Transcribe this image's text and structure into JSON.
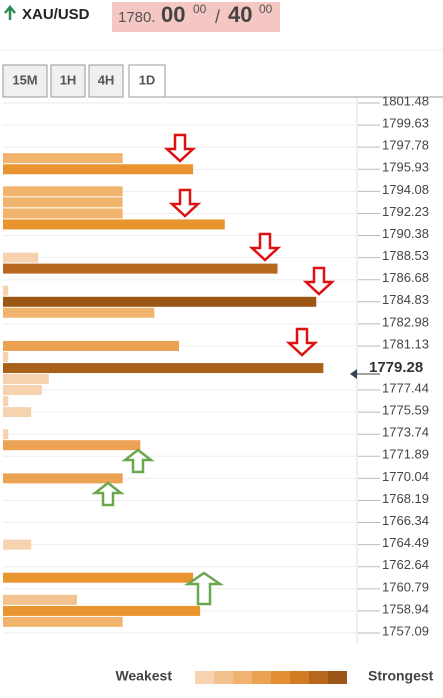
{
  "header": {
    "symbol": "XAU/USD",
    "bid_main": "1780.",
    "bid_big": "00",
    "bid_small": "00",
    "separator": "/",
    "ask_big": "40",
    "ask_small": "00"
  },
  "tabs": [
    "15M",
    "1H",
    "4H",
    "1D"
  ],
  "active_tab": 3,
  "chart_data": {
    "type": "confluence",
    "ylim": [
      1757.09,
      1801.48
    ],
    "yticks": [
      1801.48,
      1799.63,
      1797.78,
      1795.93,
      1794.08,
      1792.23,
      1790.38,
      1788.53,
      1786.68,
      1784.83,
      1782.98,
      1781.13,
      1777.44,
      1775.59,
      1773.74,
      1771.89,
      1770.04,
      1768.19,
      1766.34,
      1764.49,
      1762.64,
      1760.79,
      1758.94,
      1757.09
    ],
    "current_price": 1779.28,
    "xlim": [
      0,
      100
    ],
    "y": [
      1796.86,
      1795.93,
      1794.08,
      1793.16,
      1792.23,
      1791.31,
      1788.53,
      1787.61,
      1785.76,
      1784.83,
      1783.91,
      1781.13,
      1780.21,
      1779.28,
      1778.36,
      1777.44,
      1776.51,
      1775.59,
      1773.74,
      1772.82,
      1770.04,
      1764.49,
      1761.72,
      1759.87,
      1758.94,
      1758.02
    ],
    "values": [
      34,
      54,
      34,
      34,
      34,
      63,
      10,
      78,
      1.5,
      89,
      43,
      50,
      1.5,
      91,
      13,
      11,
      1.5,
      8,
      1.5,
      39,
      34,
      8,
      54,
      21,
      56,
      34
    ],
    "colors": [
      "#f0b46c",
      "#e8952f",
      "#f0b46c",
      "#f0b46c",
      "#f0b46c",
      "#e8952f",
      "#f6d2ae",
      "#b8691f",
      "#f6d2ae",
      "#9c5716",
      "#f0b46c",
      "#eba253",
      "#f6d2ae",
      "#a86118",
      "#f6d2ae",
      "#f6d2ae",
      "#f6d2ae",
      "#f6d2ae",
      "#f6d2ae",
      "#eba253",
      "#eba253",
      "#f6d2ae",
      "#e8952f",
      "#f3c38f",
      "#e8952f",
      "#f0b46c"
    ],
    "legend_low": "Weakest",
    "legend_high": "Strongest",
    "legend_colors": [
      "#f7d3b0",
      "#f3c38f",
      "#f0b470",
      "#eba253",
      "#e58f35",
      "#d27b24",
      "#b8661b",
      "#9b5516"
    ]
  }
}
